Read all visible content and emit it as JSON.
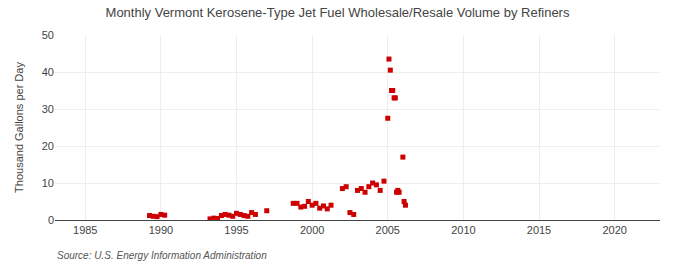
{
  "chart_data": {
    "type": "scatter",
    "title": "Monthly Vermont Kerosene-Type Jet Fuel Wholesale/Resale Volume by Refiners",
    "y_label": "Thousand Gallons per Day",
    "annotations": [
      "Source: U.S. Energy Information Administration"
    ],
    "color": "#cc0000",
    "marker": "square",
    "grid": true,
    "xlim": [
      1983,
      2023
    ],
    "ylim": [
      0,
      50
    ],
    "xticks": [
      1985,
      1990,
      1995,
      2000,
      2005,
      2010,
      2015,
      2020
    ],
    "yticks": [
      0,
      10,
      20,
      30,
      40,
      50
    ],
    "x": [
      1989.25,
      1989.5,
      1989.75,
      1990.0,
      1990.25,
      1993.25,
      1993.5,
      1993.75,
      1994.0,
      1994.25,
      1994.5,
      1994.75,
      1995.0,
      1995.25,
      1995.5,
      1995.75,
      1996.0,
      1996.25,
      1997.0,
      1998.75,
      1999.0,
      1999.25,
      1999.5,
      1999.75,
      2000.0,
      2000.25,
      2000.5,
      2000.75,
      2001.0,
      2001.25,
      2002.0,
      2002.25,
      2002.5,
      2002.75,
      2003.0,
      2003.25,
      2003.5,
      2003.75,
      2004.0,
      2004.25,
      2004.5,
      2004.75,
      2005.0,
      2005.08,
      2005.17,
      2005.25,
      2005.33,
      2005.42,
      2005.5,
      2005.58,
      2005.67,
      2005.75,
      2006.0,
      2006.08,
      2006.17
    ],
    "values": [
      1.2,
      1.0,
      0.9,
      1.5,
      1.3,
      0.3,
      0.5,
      0.4,
      1.2,
      1.5,
      1.3,
      1.0,
      1.8,
      1.5,
      1.2,
      1.0,
      2.0,
      1.5,
      2.5,
      4.5,
      4.5,
      3.5,
      3.7,
      5.0,
      4.0,
      4.5,
      3.2,
      3.8,
      3.0,
      4.0,
      8.5,
      9.0,
      2.0,
      1.5,
      8.0,
      8.5,
      7.5,
      9.0,
      10.0,
      9.5,
      8.0,
      10.5,
      27.5,
      43.5,
      40.5,
      35.0,
      35.0,
      33.0,
      33.0,
      7.5,
      8.0,
      7.5,
      17.0,
      5.0,
      4.0
    ]
  }
}
